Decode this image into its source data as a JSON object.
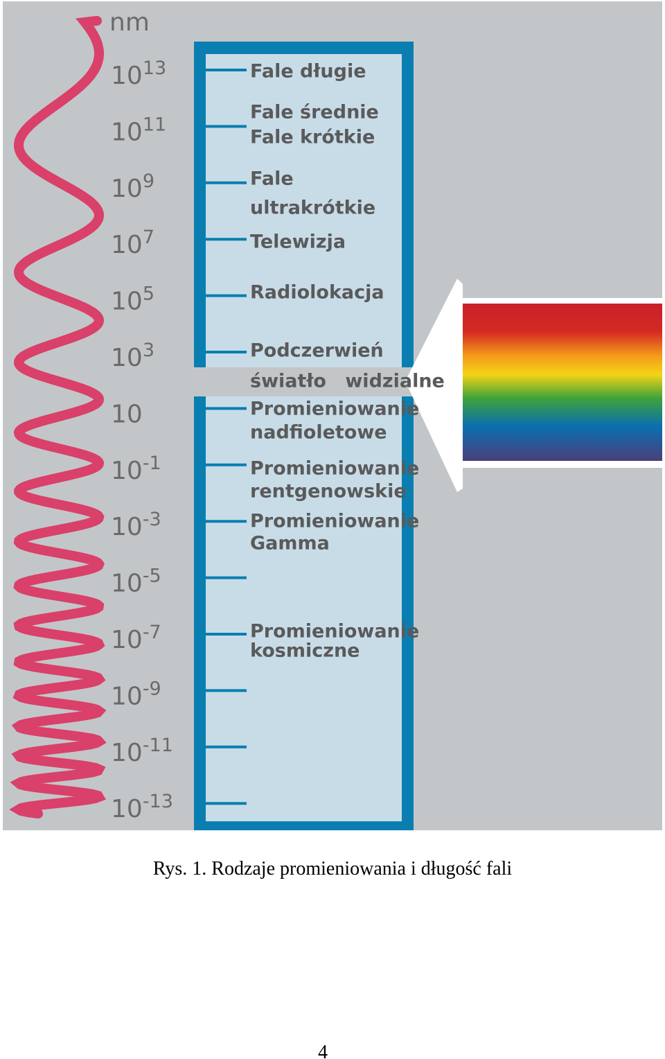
{
  "figure": {
    "unit": "nm",
    "scale": [
      {
        "base": "10",
        "exp": "13"
      },
      {
        "base": "10",
        "exp": "11"
      },
      {
        "base": "10",
        "exp": "9"
      },
      {
        "base": "10",
        "exp": "7"
      },
      {
        "base": "10",
        "exp": "5"
      },
      {
        "base": "10",
        "exp": "3"
      },
      {
        "base": "10"
      },
      {
        "base": "10",
        "exp": "-1"
      },
      {
        "base": "10",
        "exp": "-3"
      },
      {
        "base": "10",
        "exp": "-5"
      },
      {
        "base": "10",
        "exp": "-7"
      },
      {
        "base": "10",
        "exp": "-9"
      },
      {
        "base": "10",
        "exp": "-11"
      },
      {
        "base": "10",
        "exp": "-13"
      }
    ],
    "bands": [
      {
        "lines": [
          "Fale długie"
        ]
      },
      {
        "lines": [
          "Fale średnie",
          "Fale krótkie"
        ]
      },
      {
        "lines": [
          "Fale",
          "ultrakrótkie"
        ]
      },
      {
        "lines": [
          "Telewizja"
        ]
      },
      {
        "lines": [
          "Radiolokacja"
        ]
      },
      {
        "lines": [
          "Podczerwień"
        ]
      },
      {
        "lines": [
          "światło widzialne"
        ]
      },
      {
        "lines": [
          "Promieniowanie",
          "nadfioletowe"
        ]
      },
      {
        "lines": [
          "Promieniowanie",
          "rentgenowskie"
        ]
      },
      {
        "lines": [
          "Promieniowanie",
          "Gamma"
        ]
      },
      {
        "lines": [
          "Promieniowanie",
          "kosmiczne"
        ]
      }
    ]
  },
  "caption": "Rys. 1. Rodzaje promieniowania i długość fali",
  "page_number": "4"
}
